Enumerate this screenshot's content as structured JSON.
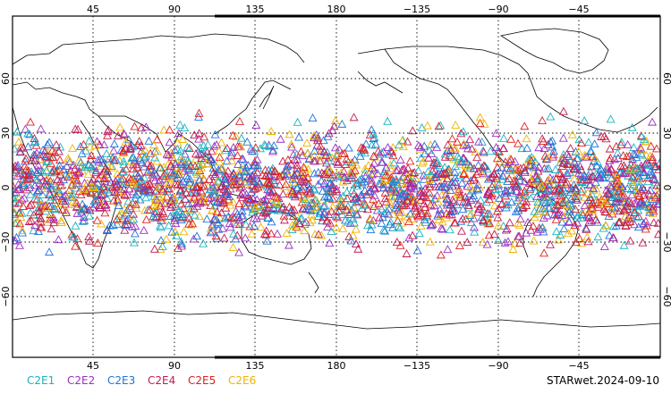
{
  "map": {
    "top_ticks": [
      "45",
      "90",
      "135",
      "180",
      "−135",
      "−90",
      "−45"
    ],
    "bottom_ticks": [
      "45",
      "90",
      "135",
      "180",
      "−135",
      "−90",
      "−45"
    ],
    "left_ticks": [
      "60",
      "30",
      "0",
      "−30",
      "−60"
    ],
    "right_ticks": [
      "60",
      "30",
      "0",
      "−30",
      "−60"
    ],
    "grid": "dotted",
    "lon_range": [
      0,
      360
    ],
    "lat_range": [
      -90,
      90
    ]
  },
  "legend": [
    {
      "label": "C2E1",
      "color": "#17b3c2"
    },
    {
      "label": "C2E2",
      "color": "#9a2fc4"
    },
    {
      "label": "C2E3",
      "color": "#1e73d9"
    },
    {
      "label": "C2E4",
      "color": "#c21a55"
    },
    {
      "label": "C2E5",
      "color": "#e02020"
    },
    {
      "label": "C2E6",
      "color": "#f0b400"
    }
  ],
  "footer": {
    "product_label": "STARwet.2024-09-10"
  },
  "chart_data": {
    "type": "scatter",
    "marker": "triangle",
    "x_axis": "longitude",
    "y_axis": "latitude",
    "series_density": [
      {
        "lon_range": [
          0,
          360
        ],
        "lat_range": [
          -42,
          42
        ]
      }
    ]
  }
}
